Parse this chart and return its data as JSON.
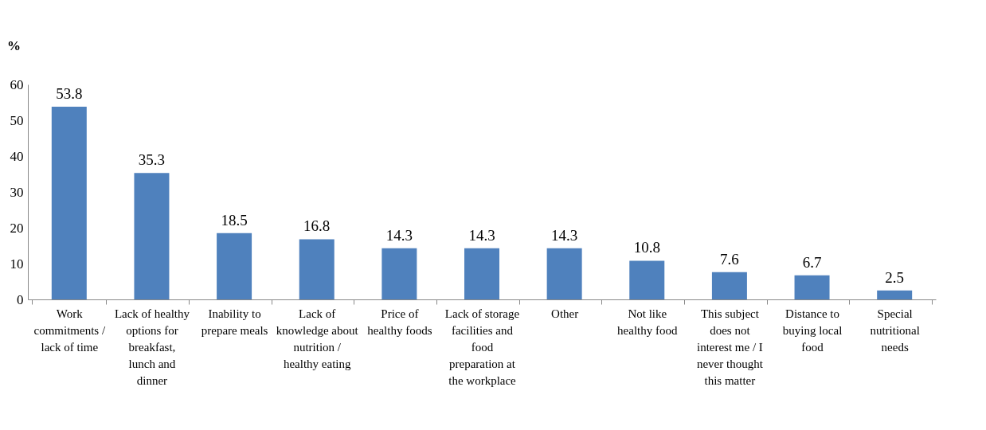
{
  "chart_data": {
    "type": "bar",
    "ylabel": "%",
    "categories": [
      "Work commitments / lack of time",
      "Lack of healthy options for breakfast, lunch and dinner",
      "Inability to prepare meals",
      "Lack of knowledge about nutrition / healthy eating",
      "Price of healthy foods",
      "Lack of storage facilities and food preparation at the workplace",
      "Other",
      "Not like healthy food",
      "This subject does not interest me / I never thought this matter",
      "Distance to buying local food",
      "Special nutritional needs"
    ],
    "values": [
      53.8,
      35.3,
      18.5,
      16.8,
      14.3,
      14.3,
      14.3,
      10.8,
      7.6,
      6.7,
      2.5
    ],
    "color": "#4f81bd",
    "ylim": [
      0,
      60
    ],
    "yticks": [
      0,
      10,
      20,
      30,
      40,
      50,
      60
    ],
    "grid": false,
    "data_labels": true
  }
}
